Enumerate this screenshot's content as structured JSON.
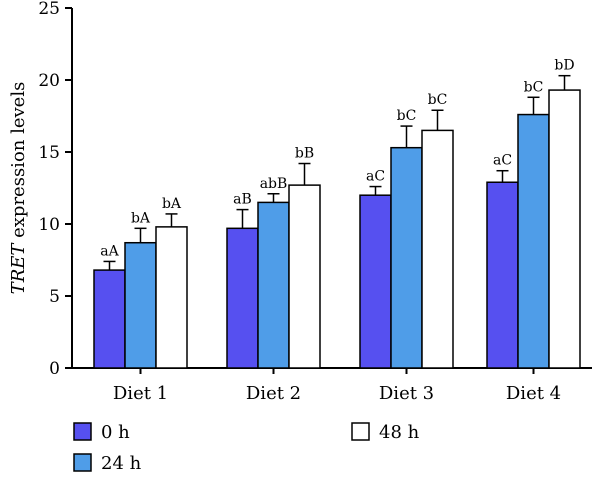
{
  "chart_data": {
    "type": "bar",
    "categories": [
      "Diet 1",
      "Diet 2",
      "Diet 3",
      "Diet 4"
    ],
    "series": [
      {
        "name": "0 h",
        "color": "#5650f0",
        "values": [
          6.8,
          9.7,
          12.0,
          12.9
        ],
        "errors": [
          0.6,
          1.3,
          0.6,
          0.8
        ],
        "labels": [
          "aA",
          "aB",
          "aC",
          "aC"
        ]
      },
      {
        "name": "24 h",
        "color": "#4f9de8",
        "values": [
          8.7,
          11.5,
          15.3,
          17.6
        ],
        "errors": [
          1.0,
          0.6,
          1.5,
          1.2
        ],
        "labels": [
          "bA",
          "abB",
          "bC",
          "bC"
        ]
      },
      {
        "name": "48 h",
        "color": "#ffffff",
        "values": [
          9.8,
          12.7,
          16.5,
          19.3
        ],
        "errors": [
          0.9,
          1.5,
          1.4,
          1.0
        ],
        "labels": [
          "bA",
          "bB",
          "bC",
          "bD"
        ]
      }
    ],
    "ylabel_italic": "TRET",
    "ylabel_rest": " expression levels",
    "xlabel": "",
    "ylim": [
      0,
      25
    ],
    "yticks": [
      "0",
      "5",
      "10",
      "15",
      "20",
      "25"
    ],
    "grid": false,
    "legend_position": "bottom"
  }
}
